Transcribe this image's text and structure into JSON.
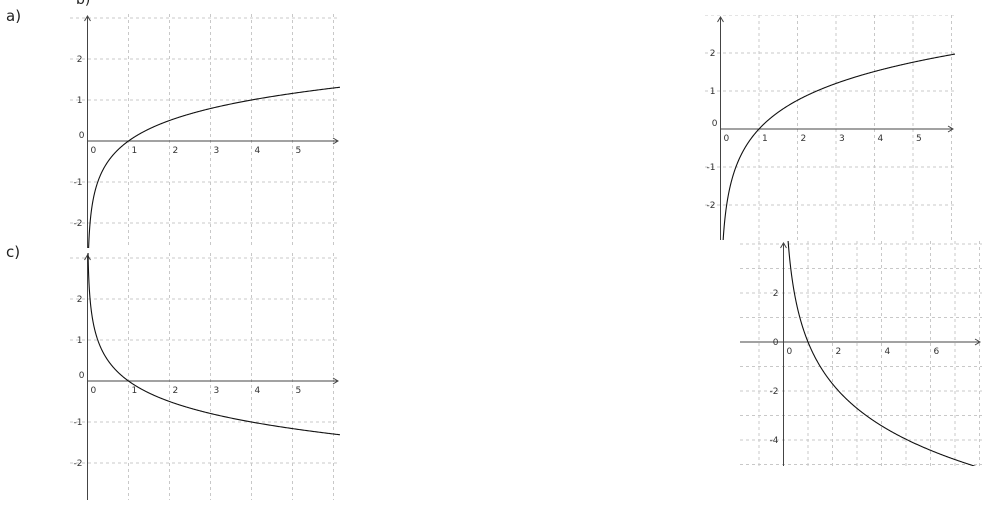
{
  "labels": {
    "a": "a)",
    "b": "b)",
    "c": "c)"
  },
  "chart_data": [
    {
      "id": "graph-a",
      "type": "line",
      "xlim": [
        0,
        6
      ],
      "ylim": [
        -3,
        3
      ],
      "grid": true,
      "x_ticks": [
        0,
        1,
        2,
        3,
        4,
        5
      ],
      "y_ticks": [
        2,
        1,
        0,
        -1,
        -2
      ],
      "series": [
        {
          "function": "ln(x)/ln(4)",
          "x": [
            0.02,
            0.25,
            0.5,
            1,
            2,
            3,
            4,
            5,
            6
          ],
          "y": [
            -2.82,
            -1,
            -0.5,
            0,
            0.5,
            0.79,
            1,
            1.16,
            1.29
          ]
        }
      ]
    },
    {
      "id": "graph-b",
      "type": "line",
      "xlim": [
        0,
        6
      ],
      "ylim": [
        -3,
        3
      ],
      "grid": true,
      "x_ticks": [
        0,
        1,
        2,
        3,
        4,
        5
      ],
      "y_ticks": [
        2,
        1,
        0,
        -1,
        -2
      ],
      "series": [
        {
          "function": "ln(x)/ln(2.5)",
          "x": [
            0.04,
            0.2,
            0.5,
            1,
            2,
            3,
            4,
            5,
            6
          ],
          "y": [
            -3.5,
            -1.76,
            -0.76,
            0,
            0.76,
            1.2,
            1.51,
            1.76,
            1.96
          ]
        }
      ]
    },
    {
      "id": "graph-c",
      "type": "line",
      "xlim": [
        0,
        6
      ],
      "ylim": [
        -3,
        3
      ],
      "grid": true,
      "x_ticks": [
        0,
        1,
        2,
        3,
        4,
        5
      ],
      "y_ticks": [
        2,
        1,
        0,
        -1,
        -2
      ],
      "series": [
        {
          "function": "-ln(x)/ln(4)",
          "x": [
            0.02,
            0.25,
            0.5,
            1,
            2,
            3,
            4,
            5,
            6
          ],
          "y": [
            2.82,
            1,
            0.5,
            0,
            -0.5,
            -0.79,
            -1,
            -1.16,
            -1.29
          ]
        }
      ]
    },
    {
      "id": "graph-d",
      "type": "line",
      "xlim": [
        -2,
        8
      ],
      "ylim": [
        -5,
        4
      ],
      "grid": true,
      "x_ticks": [
        0,
        2,
        4,
        6
      ],
      "y_ticks": [
        2,
        0,
        -2,
        -4
      ],
      "series": [
        {
          "function": "-ln(x)/ln(1.5)",
          "x": [
            0.05,
            0.25,
            0.5,
            1,
            2,
            3,
            4,
            5,
            6,
            7
          ],
          "y": [
            7.39,
            3.42,
            1.71,
            0,
            -1.71,
            -2.71,
            -3.42,
            -3.97,
            -4.42,
            -4.8
          ]
        }
      ]
    }
  ]
}
